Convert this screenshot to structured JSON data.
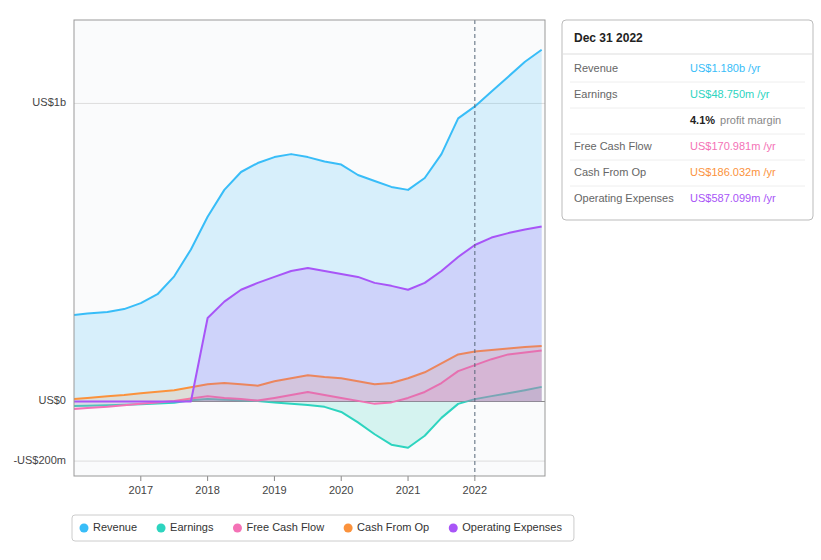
{
  "chart_data": {
    "type": "area",
    "x": [
      2016.0,
      2016.2,
      2016.5,
      2016.75,
      2017.0,
      2017.25,
      2017.5,
      2017.75,
      2018.0,
      2018.25,
      2018.5,
      2018.75,
      2019.0,
      2019.25,
      2019.5,
      2019.75,
      2020.0,
      2020.25,
      2020.5,
      2020.75,
      2021.0,
      2021.25,
      2021.5,
      2021.75,
      2022.0,
      2022.25,
      2022.5,
      2022.75,
      2023.0
    ],
    "series": [
      {
        "name": "Revenue",
        "color": "#38bdf8",
        "values": [
          290,
          295,
          300,
          310,
          330,
          360,
          420,
          510,
          620,
          710,
          770,
          800,
          820,
          830,
          820,
          805,
          795,
          760,
          740,
          720,
          710,
          750,
          830,
          950,
          990,
          1040,
          1090,
          1140,
          1180
        ]
      },
      {
        "name": "Earnings",
        "color": "#2dd4bf",
        "values": [
          -15,
          -14,
          -13,
          -11,
          -9,
          -7,
          -4,
          4,
          8,
          6,
          4,
          2,
          -3,
          -8,
          -12,
          -18,
          -35,
          -70,
          -110,
          -145,
          -155,
          -115,
          -55,
          -8,
          8,
          18,
          28,
          38,
          49
        ]
      },
      {
        "name": "Free Cash Flow",
        "color": "#f472b6",
        "values": [
          -25,
          -22,
          -18,
          -13,
          -8,
          -3,
          2,
          10,
          18,
          12,
          8,
          3,
          12,
          22,
          32,
          22,
          12,
          2,
          -8,
          -3,
          12,
          32,
          62,
          102,
          122,
          142,
          158,
          164,
          171
        ]
      },
      {
        "name": "Cash From Op",
        "color": "#fb923c",
        "values": [
          8,
          12,
          18,
          22,
          28,
          33,
          38,
          48,
          58,
          62,
          58,
          53,
          68,
          78,
          88,
          82,
          78,
          68,
          58,
          62,
          78,
          98,
          128,
          158,
          168,
          173,
          178,
          183,
          186
        ]
      },
      {
        "name": "Operating Expenses",
        "color": "#a855f7",
        "values": [
          0,
          0,
          0,
          0,
          0,
          0,
          0,
          0,
          280,
          335,
          375,
          398,
          418,
          438,
          448,
          438,
          428,
          418,
          398,
          388,
          375,
          398,
          438,
          485,
          525,
          550,
          565,
          577,
          587
        ]
      }
    ],
    "xlim": [
      2016.0,
      2023.05
    ],
    "xticks": [
      2017,
      2018,
      2019,
      2020,
      2021,
      2022
    ],
    "ylim": [
      -250,
      1280
    ],
    "yticks": [
      {
        "value": -200,
        "label": "-US$200m"
      },
      {
        "value": 0,
        "label": "US$0"
      },
      {
        "value": 1000,
        "label": "US$1b"
      }
    ],
    "grid": true,
    "legend": "bottom",
    "annotations": {
      "title": "Dec 31 2022",
      "x": 2022,
      "rows": [
        {
          "label": "Revenue",
          "value": "US$1.180b /yr",
          "color": "#38bdf8"
        },
        {
          "label": "Earnings",
          "value": "US$48.750m /yr",
          "color": "#2dd4bf"
        },
        {
          "value": "4.1%",
          "suffix": "profit margin"
        },
        {
          "label": "Free Cash Flow",
          "value": "US$170.981m /yr",
          "color": "#f472b6"
        },
        {
          "label": "Cash From Op",
          "value": "US$186.032m /yr",
          "color": "#fb923c"
        },
        {
          "label": "Operating Expenses",
          "value": "US$587.099m /yr",
          "color": "#a855f7"
        }
      ]
    }
  }
}
